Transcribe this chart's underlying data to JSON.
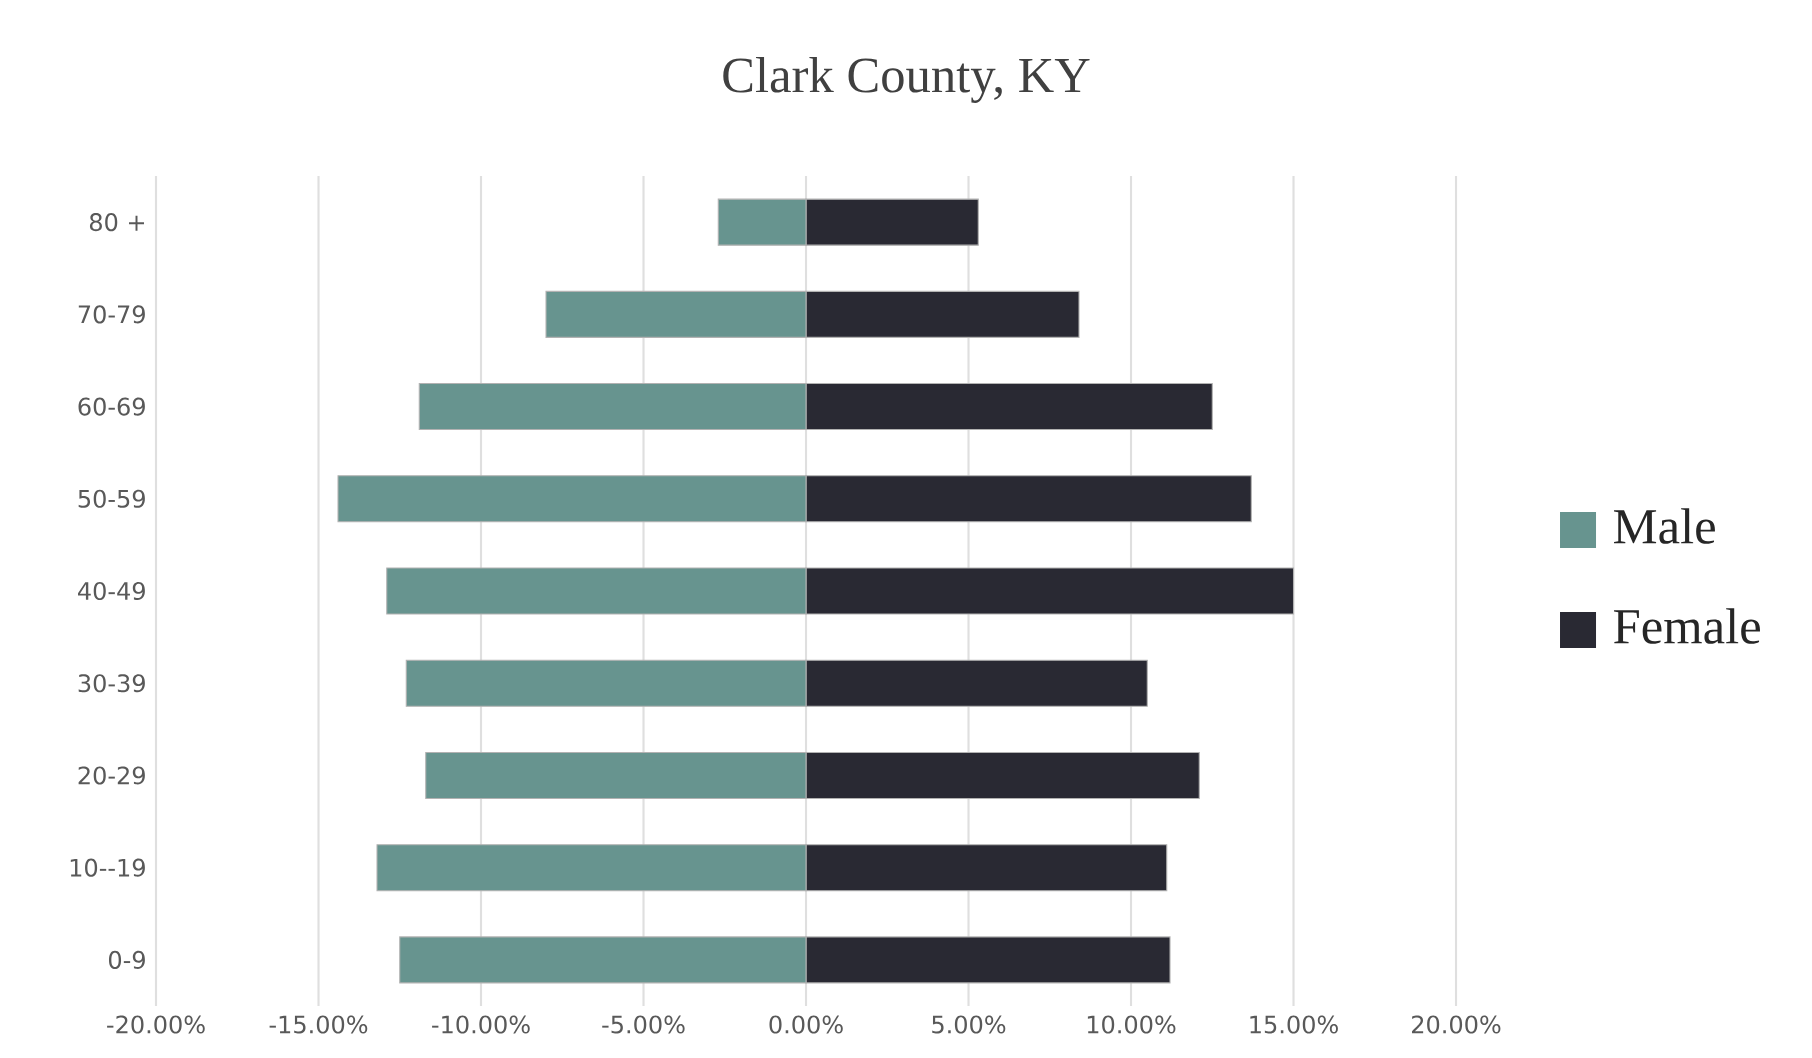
{
  "chart_data": {
    "type": "bar",
    "orientation": "horizontal",
    "title": "Clark County, KY",
    "categories": [
      "80 +",
      "70-79",
      "60-69",
      "50-59",
      "40-49",
      "30-39",
      "20-29",
      "10--19",
      "0-9"
    ],
    "series": [
      {
        "name": "Male",
        "color": "#67948f",
        "values": [
          -2.7,
          -8.0,
          -11.9,
          -14.4,
          -12.9,
          -12.3,
          -11.7,
          -13.2,
          -12.5
        ]
      },
      {
        "name": "Female",
        "color": "#292933",
        "values": [
          5.3,
          8.4,
          12.5,
          13.7,
          15.0,
          10.5,
          12.1,
          11.1,
          11.2
        ]
      }
    ],
    "xlim": [
      -20,
      20
    ],
    "xticks": [
      {
        "value": -20,
        "label": "-20.00%"
      },
      {
        "value": -15,
        "label": "-15.00%"
      },
      {
        "value": -10,
        "label": "-10.00%"
      },
      {
        "value": -5,
        "label": "-5.00%"
      },
      {
        "value": 0,
        "label": "0.00%"
      },
      {
        "value": 5,
        "label": "5.00%"
      },
      {
        "value": 10,
        "label": "10.00%"
      },
      {
        "value": 15,
        "label": "15.00%"
      },
      {
        "value": 20,
        "label": "20.00%"
      }
    ],
    "grid": "x",
    "legend": "right",
    "stacked": true
  }
}
